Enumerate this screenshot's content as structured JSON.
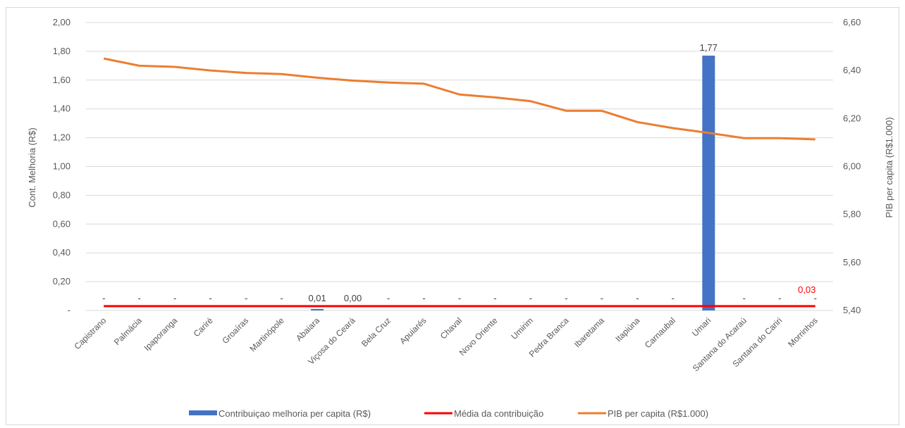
{
  "chart_data": {
    "type": "bar",
    "categories": [
      "Capistrano",
      "Palmácia",
      "Ipaporanga",
      "Cariré",
      "Groaíras",
      "Martinópole",
      "Abaiara",
      "Viçosa do Ceará",
      "Bela Cruz",
      "Apuiarés",
      "Chaval",
      "Novo Oriente",
      "Umirim",
      "Pedra Branca",
      "Ibaretama",
      "Itapiúna",
      "Carnaubal",
      "Umari",
      "Santana do Acaraú",
      "Santana do Cariri",
      "Morrinhos"
    ],
    "ylabel": "Cont. Melhoria (R$)",
    "y2label": "PIB per capita (R$1.000)",
    "ylim": [
      0,
      2.0
    ],
    "y2lim": [
      5.4,
      6.6
    ],
    "y_ticks": [
      "-",
      "0,20",
      "0,40",
      "0,60",
      "0,80",
      "1,00",
      "1,20",
      "1,40",
      "1,60",
      "1,80",
      "2,00"
    ],
    "y2_ticks": [
      "5,40",
      "5,60",
      "5,80",
      "6,00",
      "6,20",
      "6,40",
      "6,60"
    ],
    "grid": true,
    "legend_position": "bottom",
    "series": [
      {
        "name": "Contribuiçao melhoria per capita (R$)",
        "type": "bar",
        "axis": "left",
        "color": "#4472c4",
        "values": [
          0,
          0,
          0,
          0,
          0,
          0,
          0.01,
          0.0,
          0,
          0,
          0,
          0,
          0,
          0,
          0,
          0,
          0,
          1.77,
          0,
          0,
          0
        ],
        "data_labels": [
          "-",
          "-",
          "-",
          "-",
          "-",
          "-",
          "0,01",
          "0,00",
          "-",
          "-",
          "-",
          "-",
          "-",
          "-",
          "-",
          "-",
          "-",
          "1,77",
          "-",
          "-",
          "-"
        ]
      },
      {
        "name": "Média da contribuição",
        "type": "line",
        "axis": "left",
        "color": "#ff0000",
        "values": [
          0.03,
          0.03,
          0.03,
          0.03,
          0.03,
          0.03,
          0.03,
          0.03,
          0.03,
          0.03,
          0.03,
          0.03,
          0.03,
          0.03,
          0.03,
          0.03,
          0.03,
          0.03,
          0.03,
          0.03,
          0.03
        ],
        "end_label": "0,03"
      },
      {
        "name": "PIB per capita (R$1.000)",
        "type": "line",
        "axis": "right",
        "color": "#ed7d31",
        "values": [
          6.45,
          6.42,
          6.415,
          6.4,
          6.39,
          6.385,
          6.37,
          6.358,
          6.35,
          6.345,
          6.3,
          6.288,
          6.272,
          6.232,
          6.232,
          6.185,
          6.16,
          6.14,
          6.118,
          6.118,
          6.113
        ]
      }
    ]
  }
}
